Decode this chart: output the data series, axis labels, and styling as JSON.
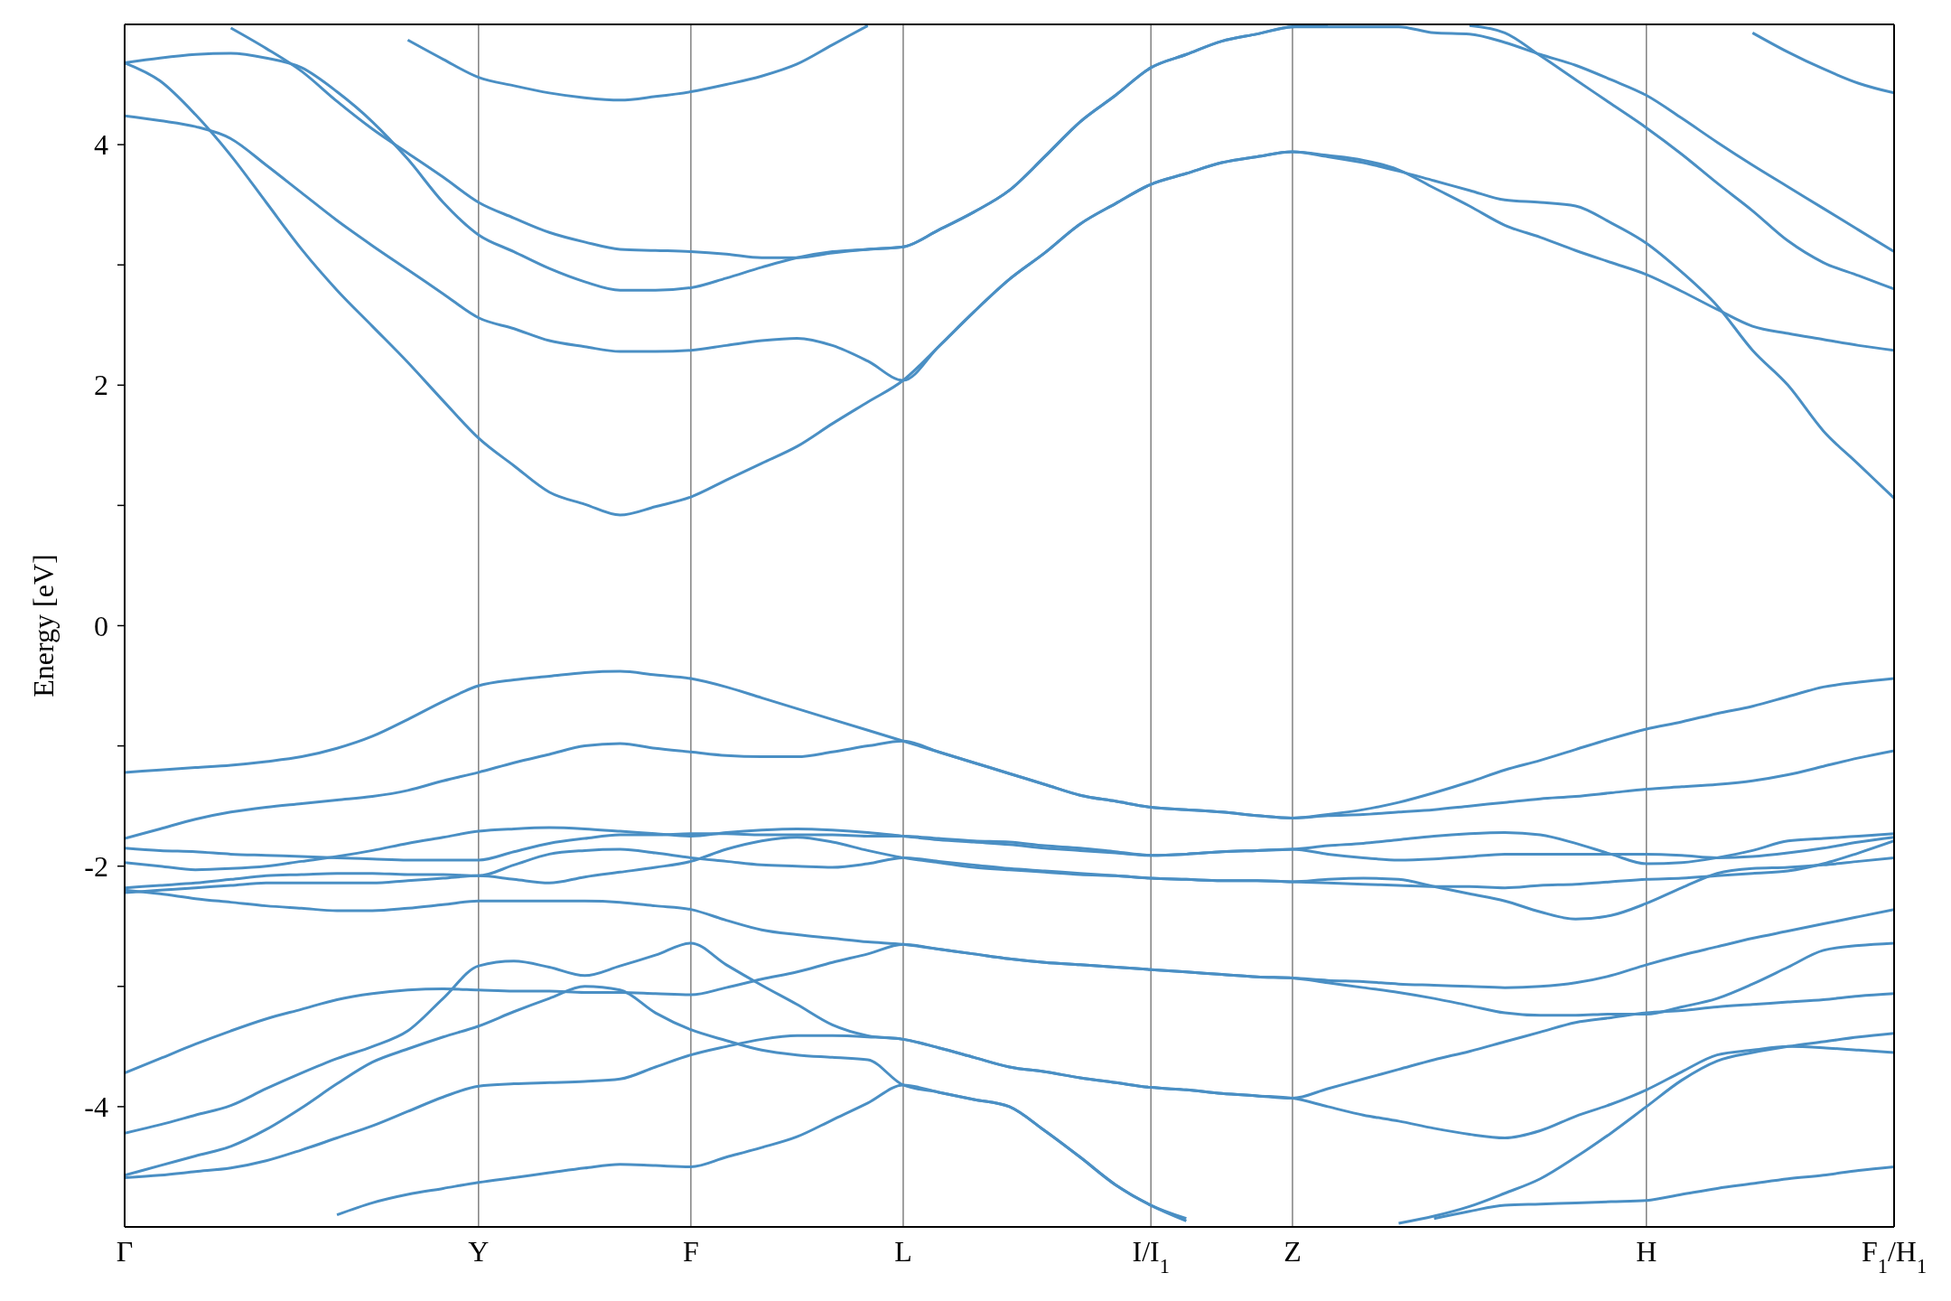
{
  "chart_data": {
    "type": "line",
    "ylabel": "Energy [eV]",
    "categories": [
      "Γ",
      null,
      null,
      null,
      null,
      null,
      null,
      null,
      null,
      null,
      "Y",
      null,
      null,
      null,
      null,
      null,
      "F",
      null,
      null,
      null,
      null,
      null,
      "L",
      null,
      null,
      null,
      null,
      null,
      null,
      "I/I$_{1}$",
      null,
      null,
      null,
      "Z",
      null,
      null,
      null,
      null,
      null,
      null,
      null,
      null,
      null,
      "H",
      null,
      null,
      null,
      null,
      null,
      null,
      "F$_{1}$/H$_{1}$"
    ],
    "ylim": [
      -5,
      5
    ],
    "yticks": [
      -4,
      {
        "value": -3,
        "label": null
      },
      -2,
      {
        "value": -1,
        "label": null
      },
      0,
      {
        "value": 1,
        "label": null
      },
      2,
      {
        "value": 3,
        "label": null
      },
      4
    ],
    "grid": "x",
    "line_style": "solid",
    "marker": "none",
    "series": [
      {
        "color": "#4a8fc4",
        "values": [
          4.68,
          4.53,
          4.25,
          3.91,
          3.52,
          3.13,
          2.79,
          2.49,
          2.19,
          1.87,
          1.56,
          1.33,
          1.11,
          1.01,
          0.92,
          0.99,
          1.07,
          1.21,
          1.35,
          1.49,
          1.68,
          1.86,
          2.04,
          2.32,
          2.61,
          2.88,
          3.1,
          3.34,
          3.51,
          3.67,
          3.76,
          3.85,
          3.9,
          3.94,
          3.91,
          3.87,
          3.79,
          3.64,
          3.49,
          3.33,
          3.23,
          3.12,
          3.02,
          2.92,
          2.78,
          2.63,
          2.49,
          2.43,
          2.38,
          2.33,
          2.29
        ]
      },
      {
        "color": "#4a8fc4",
        "values": [
          4.24,
          4.2,
          4.15,
          4.05,
          3.83,
          3.6,
          3.37,
          3.16,
          2.96,
          2.76,
          2.56,
          2.47,
          2.37,
          2.32,
          2.28,
          2.28,
          2.29,
          2.33,
          2.37,
          2.39,
          2.33,
          2.2,
          2.04,
          2.32,
          2.61,
          2.88,
          3.1,
          3.34,
          3.51,
          3.67,
          3.76,
          3.85,
          3.9,
          3.94,
          3.9,
          3.85,
          3.78,
          3.7,
          3.62,
          3.54,
          3.52,
          3.49,
          3.35,
          3.18,
          2.94,
          2.66,
          2.29,
          2.0,
          1.62,
          1.34,
          1.06
        ]
      },
      {
        "color": "#4a8fc4",
        "values": [
          4.68,
          4.72,
          4.75,
          4.76,
          4.72,
          4.64,
          4.44,
          4.19,
          3.88,
          3.52,
          3.25,
          3.11,
          2.97,
          2.86,
          2.79,
          2.79,
          2.81,
          2.89,
          2.98,
          3.06,
          3.11,
          3.13,
          3.15,
          3.29,
          3.44,
          3.62,
          3.9,
          4.19,
          4.41,
          4.64,
          4.75,
          4.86,
          4.92,
          4.98,
          4.98,
          4.98,
          4.98,
          4.93,
          4.92,
          4.85,
          4.75,
          4.66,
          4.54,
          4.41,
          4.22,
          4.02,
          3.83,
          3.65,
          3.47,
          3.29,
          3.11
        ]
      },
      {
        "color": "#4a8fc4",
        "values": [
          null,
          null,
          null,
          4.97,
          4.8,
          4.61,
          4.36,
          4.13,
          3.93,
          3.73,
          3.52,
          3.39,
          3.27,
          3.19,
          3.13,
          3.12,
          3.11,
          3.09,
          3.06,
          3.06,
          3.1,
          3.13,
          3.15,
          3.29,
          3.44,
          3.62,
          3.9,
          4.19,
          4.41,
          4.64,
          4.75,
          4.86,
          4.92,
          4.98,
          4.99,
          null,
          null,
          null,
          4.99,
          4.93,
          4.74,
          4.54,
          4.34,
          4.14,
          3.92,
          3.68,
          3.45,
          3.2,
          3.02,
          2.91,
          2.8
        ]
      },
      {
        "color": "#4a8fc4",
        "values": [
          null,
          null,
          null,
          null,
          null,
          null,
          null,
          null,
          4.87,
          4.71,
          4.56,
          4.49,
          4.43,
          4.39,
          4.37,
          4.4,
          4.44,
          4.5,
          4.57,
          4.67,
          4.83,
          4.99,
          null,
          null,
          null,
          null,
          null,
          null,
          null,
          null,
          null,
          null,
          null,
          null,
          null,
          null,
          null,
          null,
          null,
          null,
          null,
          null,
          null,
          null,
          null,
          null,
          null,
          null,
          null,
          null,
          null
        ]
      },
      {
        "color": "#4a8fc4",
        "values": [
          null,
          null,
          null,
          null,
          null,
          null,
          null,
          null,
          null,
          null,
          null,
          null,
          null,
          null,
          null,
          null,
          null,
          null,
          null,
          null,
          null,
          null,
          null,
          null,
          null,
          null,
          null,
          null,
          null,
          null,
          null,
          null,
          null,
          null,
          null,
          null,
          null,
          null,
          null,
          null,
          null,
          null,
          null,
          null,
          null,
          null,
          4.93,
          4.77,
          4.63,
          4.51,
          4.43
        ]
      },
      {
        "color": "#4a8fc4",
        "values": [
          -1.22,
          -1.2,
          -1.18,
          -1.16,
          -1.13,
          -1.09,
          -1.02,
          -0.92,
          -0.78,
          -0.63,
          -0.5,
          -0.45,
          -0.42,
          -0.39,
          -0.38,
          -0.41,
          -0.44,
          -0.51,
          -0.6,
          -0.69,
          -0.78,
          -0.87,
          -0.96,
          -1.05,
          -1.14,
          -1.23,
          -1.32,
          -1.41,
          -1.46,
          -1.51,
          -1.53,
          -1.55,
          -1.58,
          -1.6,
          -1.57,
          -1.53,
          -1.47,
          -1.39,
          -1.3,
          -1.2,
          -1.12,
          -1.03,
          -0.94,
          -0.86,
          -0.8,
          -0.73,
          -0.67,
          -0.59,
          -0.51,
          -0.47,
          -0.44
        ]
      },
      {
        "color": "#4a8fc4",
        "values": [
          -1.77,
          -1.69,
          -1.61,
          -1.55,
          -1.51,
          -1.48,
          -1.45,
          -1.42,
          -1.37,
          -1.29,
          -1.22,
          -1.14,
          -1.07,
          -1.0,
          -0.98,
          -1.02,
          -1.05,
          -1.08,
          -1.09,
          -1.09,
          -1.05,
          -1.0,
          -0.96,
          -1.05,
          -1.14,
          -1.23,
          -1.32,
          -1.41,
          -1.46,
          -1.51,
          -1.53,
          -1.55,
          -1.58,
          -1.6,
          -1.58,
          -1.57,
          -1.55,
          -1.53,
          -1.5,
          -1.47,
          -1.44,
          -1.42,
          -1.39,
          -1.36,
          -1.34,
          -1.32,
          -1.29,
          -1.24,
          -1.17,
          -1.1,
          -1.04
        ]
      },
      {
        "color": "#4a8fc4",
        "values": [
          -1.85,
          -1.87,
          -1.88,
          -1.9,
          -1.91,
          -1.92,
          -1.93,
          -1.94,
          -1.95,
          -1.95,
          -1.95,
          -1.88,
          -1.81,
          -1.77,
          -1.74,
          -1.74,
          -1.73,
          -1.73,
          -1.74,
          -1.74,
          -1.74,
          -1.75,
          -1.75,
          -1.77,
          -1.79,
          -1.8,
          -1.83,
          -1.85,
          -1.88,
          -1.91,
          -1.9,
          -1.88,
          -1.87,
          -1.86,
          -1.83,
          -1.81,
          -1.78,
          -1.75,
          -1.73,
          -1.72,
          -1.74,
          -1.81,
          -1.9,
          -1.98,
          -1.97,
          -1.93,
          -1.87,
          -1.79,
          -1.77,
          -1.75,
          -1.73
        ]
      },
      {
        "color": "#4a8fc4",
        "values": [
          -1.97,
          -2.0,
          -2.03,
          -2.02,
          -2.0,
          -1.96,
          -1.92,
          -1.87,
          -1.81,
          -1.76,
          -1.71,
          -1.69,
          -1.68,
          -1.69,
          -1.71,
          -1.73,
          -1.75,
          -1.72,
          -1.7,
          -1.69,
          -1.7,
          -1.72,
          -1.75,
          -1.78,
          -1.8,
          -1.82,
          -1.85,
          -1.87,
          -1.89,
          -1.91,
          -1.9,
          -1.88,
          -1.87,
          -1.86,
          -1.9,
          -1.93,
          -1.95,
          -1.94,
          -1.92,
          -1.9,
          -1.9,
          -1.9,
          -1.9,
          -1.9,
          -1.91,
          -1.93,
          -1.92,
          -1.89,
          -1.85,
          -1.8,
          -1.76
        ]
      },
      {
        "color": "#4a8fc4",
        "values": [
          -2.18,
          -2.16,
          -2.14,
          -2.11,
          -2.08,
          -2.07,
          -2.06,
          -2.06,
          -2.07,
          -2.07,
          -2.08,
          -1.99,
          -1.9,
          -1.87,
          -1.86,
          -1.89,
          -1.93,
          -1.96,
          -1.99,
          -2.0,
          -2.01,
          -1.98,
          -1.93,
          -1.96,
          -1.99,
          -2.02,
          -2.04,
          -2.06,
          -2.08,
          -2.1,
          -2.11,
          -2.12,
          -2.12,
          -2.13,
          -2.11,
          -2.1,
          -2.11,
          -2.17,
          -2.23,
          -2.29,
          -2.38,
          -2.44,
          -2.41,
          -2.31,
          -2.18,
          -2.06,
          -2.02,
          -2.01,
          -1.99,
          -1.96,
          -1.93
        ]
      },
      {
        "color": "#4a8fc4",
        "values": [
          -2.22,
          -2.2,
          -2.18,
          -2.16,
          -2.14,
          -2.14,
          -2.14,
          -2.14,
          -2.12,
          -2.1,
          -2.08,
          -2.11,
          -2.14,
          -2.09,
          -2.05,
          -2.01,
          -1.96,
          -1.86,
          -1.79,
          -1.76,
          -1.8,
          -1.87,
          -1.93,
          -1.97,
          -2.01,
          -2.03,
          -2.05,
          -2.07,
          -2.08,
          -2.1,
          -2.11,
          -2.12,
          -2.12,
          -2.13,
          -2.14,
          -2.15,
          -2.16,
          -2.17,
          -2.17,
          -2.18,
          -2.16,
          -2.15,
          -2.13,
          -2.11,
          -2.1,
          -2.08,
          -2.06,
          -2.04,
          -1.98,
          -1.89,
          -1.79
        ]
      },
      {
        "color": "#4a8fc4",
        "values": [
          -2.2,
          -2.23,
          -2.27,
          -2.3,
          -2.33,
          -2.35,
          -2.37,
          -2.37,
          -2.35,
          -2.32,
          -2.29,
          -2.29,
          -2.29,
          -2.29,
          -2.3,
          -2.33,
          -2.36,
          -2.45,
          -2.53,
          -2.57,
          -2.6,
          -2.63,
          -2.65,
          -2.69,
          -2.73,
          -2.77,
          -2.8,
          -2.82,
          -2.84,
          -2.86,
          -2.88,
          -2.9,
          -2.92,
          -2.93,
          -2.95,
          -2.96,
          -2.98,
          -2.99,
          -3.0,
          -3.01,
          -3.0,
          -2.97,
          -2.91,
          -2.82,
          -2.74,
          -2.67,
          -2.6,
          -2.54,
          -2.48,
          -2.42,
          -2.36
        ]
      },
      {
        "color": "#4a8fc4",
        "values": [
          -3.72,
          -3.6,
          -3.48,
          -3.37,
          -3.27,
          -3.19,
          -3.11,
          -3.06,
          -3.03,
          -3.02,
          -3.03,
          -3.04,
          -3.04,
          -3.05,
          -3.05,
          -3.06,
          -3.07,
          -3.01,
          -2.94,
          -2.88,
          -2.8,
          -2.73,
          -2.65,
          -2.69,
          -2.73,
          -2.77,
          -2.8,
          -2.82,
          -2.84,
          -2.86,
          -2.88,
          -2.9,
          -2.92,
          -2.93,
          -2.97,
          -3.01,
          -3.05,
          -3.1,
          -3.16,
          -3.22,
          -3.24,
          -3.24,
          -3.23,
          -3.23,
          -3.17,
          -3.1,
          -2.98,
          -2.84,
          -2.7,
          -2.66,
          -2.64
        ]
      },
      {
        "color": "#4a8fc4",
        "values": [
          -4.22,
          -4.15,
          -4.07,
          -3.99,
          -3.85,
          -3.72,
          -3.6,
          -3.5,
          -3.37,
          -3.1,
          -2.83,
          -2.79,
          -2.84,
          -2.91,
          -2.83,
          -2.74,
          -2.64,
          -2.82,
          -2.99,
          -3.15,
          -3.32,
          -3.41,
          -3.44,
          -3.51,
          -3.59,
          -3.67,
          -3.71,
          -3.76,
          -3.8,
          -3.84,
          -3.86,
          -3.89,
          -3.91,
          -3.93,
          -3.85,
          -3.77,
          -3.69,
          -3.61,
          -3.54,
          -3.46,
          -3.38,
          -3.3,
          -3.26,
          -3.22,
          -3.2,
          -3.17,
          -3.15,
          -3.13,
          -3.11,
          -3.08,
          -3.06
        ]
      },
      {
        "color": "#4a8fc4",
        "values": [
          -4.57,
          -4.49,
          -4.41,
          -4.33,
          -4.19,
          -4.01,
          -3.81,
          -3.63,
          -3.52,
          -3.42,
          -3.33,
          -3.21,
          -3.1,
          -3.0,
          -3.03,
          -3.22,
          -3.36,
          -3.45,
          -3.53,
          -3.57,
          -3.59,
          -3.61,
          -3.82,
          -3.88,
          -3.94,
          -4.0,
          -4.2,
          -4.42,
          -4.65,
          -4.82,
          -4.93,
          null,
          null,
          null,
          null,
          null,
          null,
          null,
          null,
          null,
          null,
          null,
          null,
          null,
          null,
          null,
          null,
          null,
          null,
          null,
          null
        ]
      },
      {
        "color": "#4a8fc4",
        "values": [
          -4.59,
          -4.57,
          -4.54,
          -4.51,
          -4.45,
          -4.36,
          -4.26,
          -4.16,
          -4.04,
          -3.92,
          -3.83,
          -3.81,
          -3.8,
          -3.79,
          -3.77,
          -3.67,
          -3.57,
          -3.5,
          -3.44,
          -3.41,
          -3.41,
          -3.42,
          -3.44,
          -3.51,
          -3.59,
          -3.67,
          -3.71,
          -3.76,
          -3.8,
          -3.84,
          -3.86,
          -3.89,
          -3.91,
          -3.93,
          -4.0,
          -4.07,
          -4.12,
          -4.18,
          -4.23,
          -4.26,
          -4.2,
          -4.08,
          -3.98,
          -3.86,
          -3.71,
          -3.57,
          -3.53,
          -3.5,
          -3.51,
          -3.53,
          -3.55
        ]
      },
      {
        "color": "#4a8fc4",
        "values": [
          null,
          null,
          null,
          null,
          null,
          null,
          -4.9,
          -4.8,
          -4.73,
          -4.68,
          -4.63,
          -4.59,
          -4.55,
          -4.51,
          -4.48,
          -4.49,
          -4.5,
          -4.42,
          -4.34,
          -4.25,
          -4.11,
          -3.97,
          -3.82,
          -3.88,
          -3.94,
          -4.0,
          -4.2,
          -4.42,
          -4.65,
          -4.82,
          -4.95,
          null,
          null,
          null,
          null,
          null,
          null,
          null,
          null,
          null,
          null,
          null,
          null,
          null,
          null,
          null,
          null,
          null,
          null,
          null,
          null
        ]
      },
      {
        "color": "#4a8fc4",
        "values": [
          null,
          null,
          null,
          null,
          null,
          null,
          null,
          null,
          null,
          null,
          null,
          null,
          null,
          null,
          null,
          null,
          null,
          null,
          null,
          null,
          null,
          null,
          null,
          null,
          null,
          null,
          null,
          null,
          null,
          null,
          null,
          null,
          null,
          null,
          null,
          null,
          -4.97,
          -4.91,
          -4.83,
          -4.72,
          -4.6,
          -4.42,
          -4.22,
          -4.0,
          -3.78,
          -3.62,
          -3.55,
          -3.5,
          -3.46,
          -3.42,
          -3.39
        ]
      },
      {
        "color": "#4a8fc4",
        "values": [
          null,
          null,
          null,
          null,
          null,
          null,
          null,
          null,
          null,
          null,
          null,
          null,
          null,
          null,
          null,
          null,
          null,
          null,
          null,
          null,
          null,
          null,
          null,
          null,
          null,
          null,
          null,
          null,
          null,
          null,
          null,
          null,
          null,
          null,
          null,
          null,
          null,
          -4.93,
          -4.87,
          -4.82,
          -4.81,
          -4.8,
          -4.79,
          -4.78,
          -4.73,
          -4.68,
          -4.64,
          -4.6,
          -4.57,
          -4.53,
          -4.5
        ]
      }
    ]
  }
}
